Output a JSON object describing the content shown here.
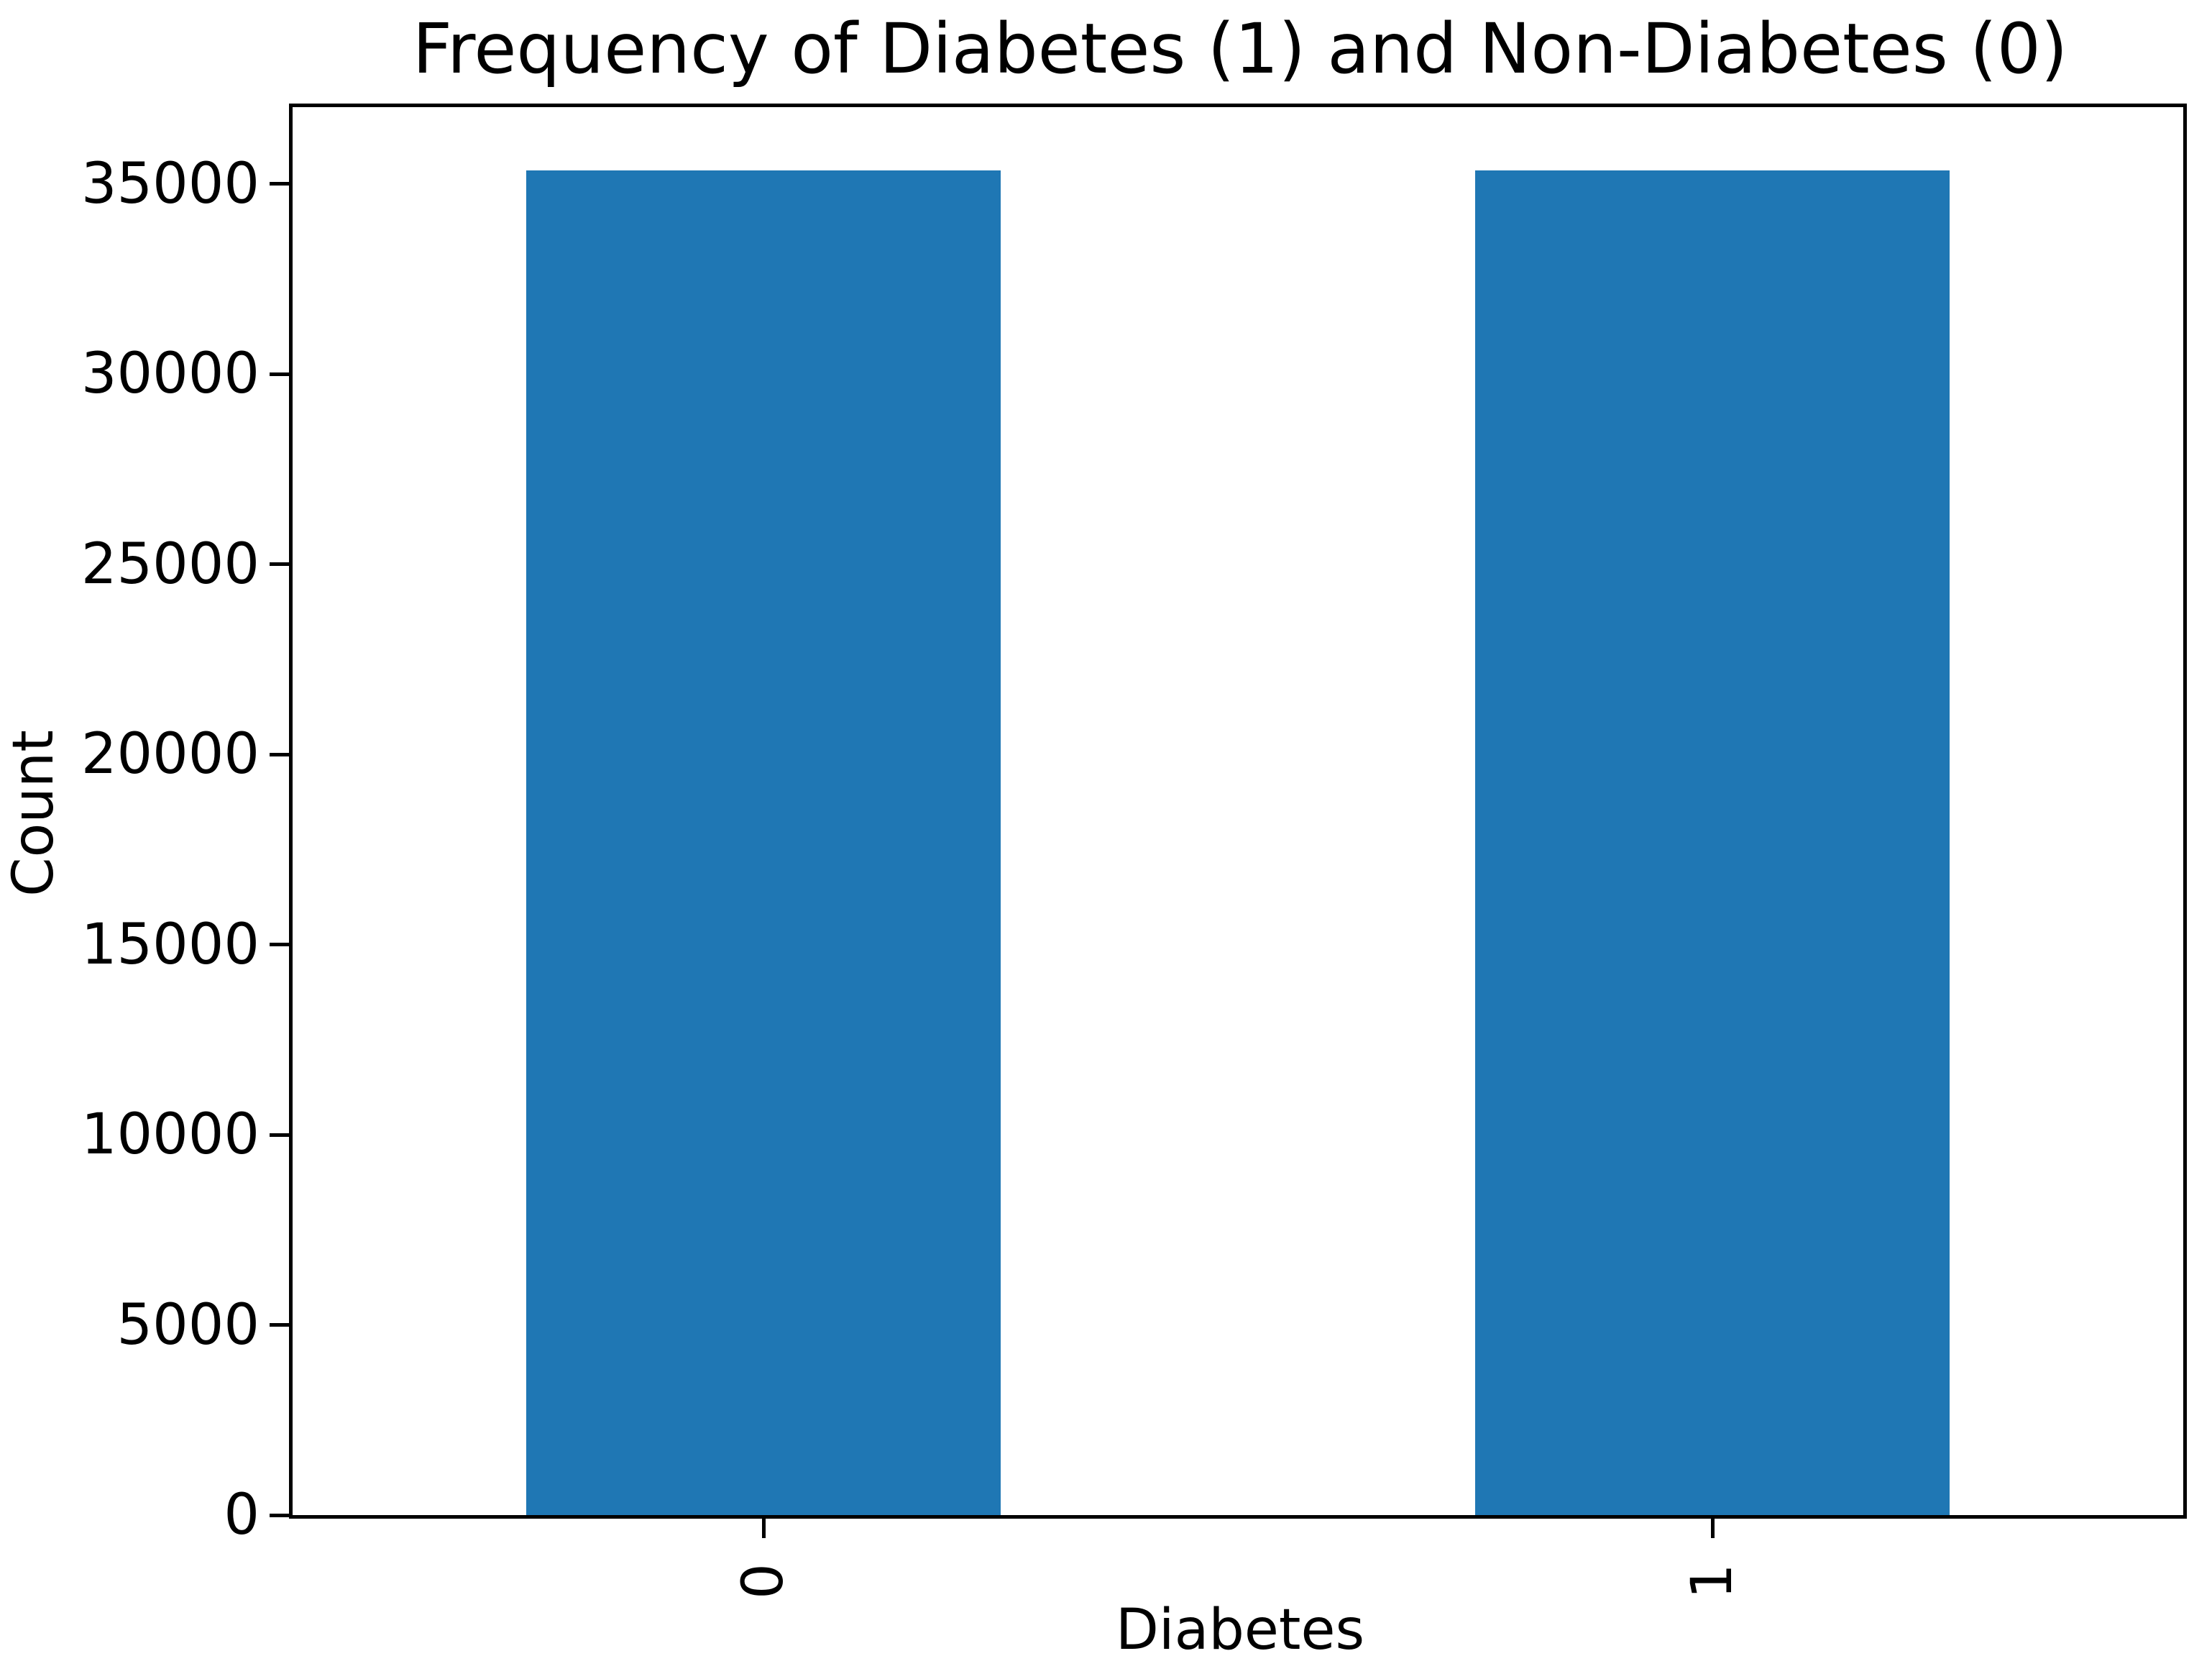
{
  "figure": {
    "title": "Frequency of Diabetes (1) and Non-Diabetes (0)",
    "xlabel": "Diabetes",
    "ylabel": "Count"
  },
  "chart_data": {
    "type": "bar",
    "title": "Frequency of Diabetes (1) and Non-Diabetes (0)",
    "xlabel": "Diabetes",
    "ylabel": "Count",
    "categories": [
      "0",
      "1"
    ],
    "values": [
      35346,
      35346
    ],
    "ylim": [
      0,
      37113
    ],
    "xlim": [
      -0.5,
      1.5
    ],
    "yticks": [
      0,
      5000,
      10000,
      15000,
      20000,
      25000,
      30000,
      35000
    ],
    "ytick_labels": [
      "0",
      "5000",
      "10000",
      "15000",
      "20000",
      "25000",
      "30000",
      "35000"
    ],
    "xtick_labels": [
      "0",
      "1"
    ],
    "xtick_rotation_deg": 90,
    "bar_color": "#1f77b4",
    "bar_width_units": 0.5,
    "grid": false,
    "legend_position": "none"
  }
}
